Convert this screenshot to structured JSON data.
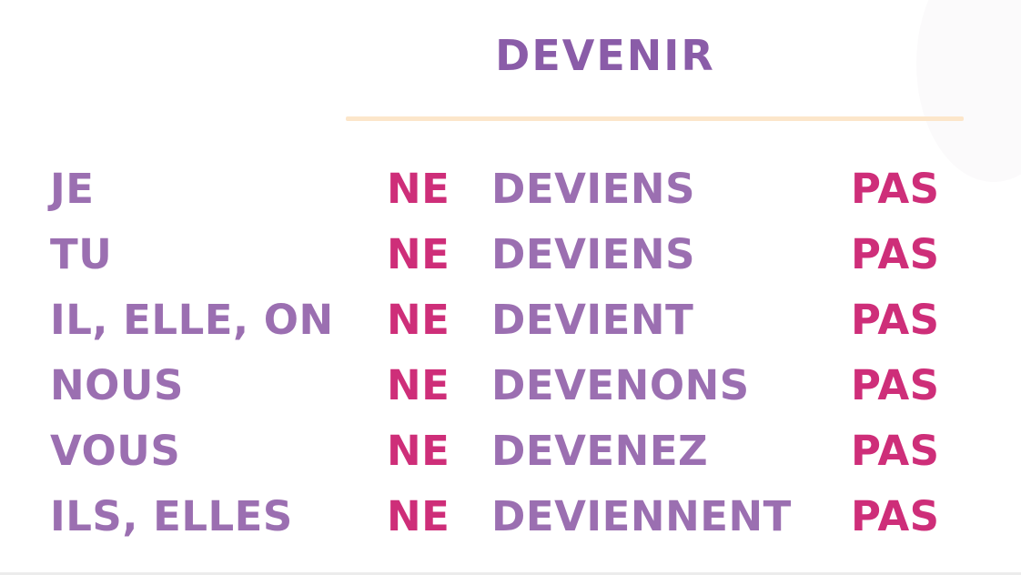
{
  "title": "DEVENIR",
  "colors": {
    "title_purple": "#8a5ca8",
    "row_purple": "#9b6fb1",
    "accent_pink": "#ce2e79",
    "divider_peach": "#fce6ca"
  },
  "table": {
    "rows": [
      {
        "pronoun": "JE",
        "ne": "NE",
        "verb": "DEVIENS",
        "pas": "PAS"
      },
      {
        "pronoun": "TU",
        "ne": "NE",
        "verb": "DEVIENS",
        "pas": "PAS"
      },
      {
        "pronoun": "IL, ELLE, ON",
        "ne": "NE",
        "verb": "DEVIENT",
        "pas": "PAS"
      },
      {
        "pronoun": "NOUS",
        "ne": "NE",
        "verb": "DEVENONS",
        "pas": "PAS"
      },
      {
        "pronoun": "VOUS",
        "ne": "NE",
        "verb": "DEVENEZ",
        "pas": "PAS"
      },
      {
        "pronoun": "ILS, ELLES",
        "ne": "NE",
        "verb": "DEVIENNENT",
        "pas": "PAS"
      }
    ]
  }
}
